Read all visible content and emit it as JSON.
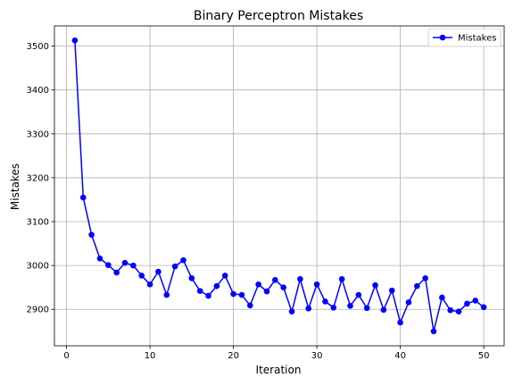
{
  "chart_data": {
    "type": "line",
    "title": "Binary Perceptron Mistakes",
    "xlabel": "Iteration",
    "ylabel": "Mistakes",
    "xlim": [
      -1.45,
      52.45
    ],
    "ylim": [
      2817,
      3546
    ],
    "xticks": [
      0,
      10,
      20,
      30,
      40,
      50
    ],
    "yticks": [
      2900,
      3000,
      3100,
      3200,
      3300,
      3400,
      3500
    ],
    "grid": true,
    "legend_position": "upper-right",
    "series": [
      {
        "name": "Mistakes",
        "color": "#0000ff",
        "marker": "circle",
        "x": [
          1,
          2,
          3,
          4,
          5,
          6,
          7,
          8,
          9,
          10,
          11,
          12,
          13,
          14,
          15,
          16,
          17,
          18,
          19,
          20,
          21,
          22,
          23,
          24,
          25,
          26,
          27,
          28,
          29,
          30,
          31,
          32,
          33,
          34,
          35,
          36,
          37,
          38,
          39,
          40,
          41,
          42,
          43,
          44,
          45,
          46,
          47,
          48,
          49,
          50
        ],
        "y": [
          3513,
          3155,
          3070,
          3016,
          3001,
          2984,
          3006,
          3000,
          2977,
          2957,
          2986,
          2933,
          2998,
          3012,
          2971,
          2942,
          2931,
          2953,
          2977,
          2935,
          2933,
          2909,
          2957,
          2941,
          2967,
          2950,
          2895,
          2969,
          2902,
          2957,
          2918,
          2904,
          2969,
          2908,
          2933,
          2903,
          2955,
          2899,
          2943,
          2870,
          2916,
          2953,
          2971,
          2850,
          2927,
          2898,
          2895,
          2913,
          2920,
          2905
        ]
      }
    ]
  }
}
